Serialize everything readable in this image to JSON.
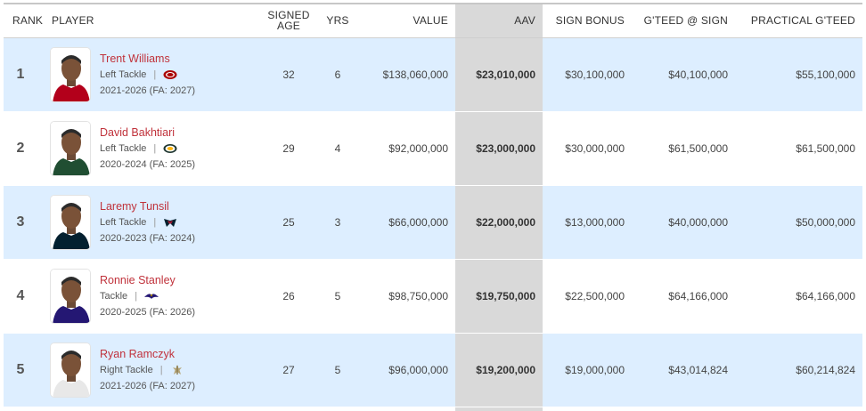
{
  "columns": {
    "rank": "RANK",
    "player": "PLAYER",
    "signed_age_1": "SIGNED",
    "signed_age_2": "AGE",
    "yrs": "YRS",
    "value": "VALUE",
    "aav": "AAV",
    "sign_bonus": "SIGN BONUS",
    "gteed_sign": "G'TEED @ SIGN",
    "practical_gteed": "PRACTICAL G'TEED"
  },
  "colors": {
    "row_highlight": "#ddeeff",
    "aav_column": "#d9d9d9",
    "player_link": "#c0323b"
  },
  "rows": [
    {
      "rank": "1",
      "name": "Trent Williams",
      "position": "Left Tackle",
      "separator": "|",
      "team_icon": "49ers-logo-icon",
      "years": "2021-2026 (FA: 2027)",
      "age": "32",
      "yrs": "6",
      "value": "$138,060,000",
      "aav": "$23,010,000",
      "sign_bonus": "$30,100,000",
      "gteed_sign": "$40,100,000",
      "practical_gteed": "$55,100,000",
      "jersey": "#b3001b"
    },
    {
      "rank": "2",
      "name": "David Bakhtiari",
      "position": "Left Tackle",
      "separator": "|",
      "team_icon": "packers-logo-icon",
      "years": "2020-2024 (FA: 2025)",
      "age": "29",
      "yrs": "4",
      "value": "$92,000,000",
      "aav": "$23,000,000",
      "sign_bonus": "$30,000,000",
      "gteed_sign": "$61,500,000",
      "practical_gteed": "$61,500,000",
      "jersey": "#204e32"
    },
    {
      "rank": "3",
      "name": "Laremy Tunsil",
      "position": "Left Tackle",
      "separator": "|",
      "team_icon": "texans-logo-icon",
      "years": "2020-2023 (FA: 2024)",
      "age": "25",
      "yrs": "3",
      "value": "$66,000,000",
      "aav": "$22,000,000",
      "sign_bonus": "$13,000,000",
      "gteed_sign": "$40,000,000",
      "practical_gteed": "$50,000,000",
      "jersey": "#03202f"
    },
    {
      "rank": "4",
      "name": "Ronnie Stanley",
      "position": "Tackle",
      "separator": "|",
      "team_icon": "ravens-logo-icon",
      "years": "2020-2025 (FA: 2026)",
      "age": "26",
      "yrs": "5",
      "value": "$98,750,000",
      "aav": "$19,750,000",
      "sign_bonus": "$22,500,000",
      "gteed_sign": "$64,166,000",
      "practical_gteed": "$64,166,000",
      "jersey": "#241773"
    },
    {
      "rank": "5",
      "name": "Ryan Ramczyk",
      "position": "Right Tackle",
      "separator": "|",
      "team_icon": "saints-logo-icon",
      "years": "2021-2026 (FA: 2027)",
      "age": "27",
      "yrs": "5",
      "value": "$96,000,000",
      "aav": "$19,200,000",
      "sign_bonus": "$19,000,000",
      "gteed_sign": "$43,014,824",
      "practical_gteed": "$60,214,824",
      "jersey": "#e8e8e8"
    }
  ]
}
